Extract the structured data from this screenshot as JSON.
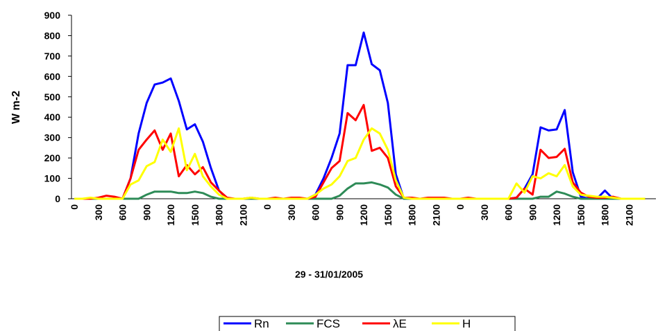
{
  "chart_data": {
    "type": "line",
    "xlabel": "29 - 31/01/2005",
    "ylabel": "W m-2",
    "categories": [
      "0",
      null,
      null,
      "300",
      null,
      null,
      "600",
      null,
      null,
      "900",
      null,
      null,
      "1200",
      null,
      null,
      "1500",
      null,
      null,
      "1800",
      null,
      null,
      "2100",
      null,
      null,
      "0",
      null,
      null,
      "300",
      null,
      null,
      "600",
      null,
      null,
      "900",
      null,
      null,
      "1200",
      null,
      null,
      "1500",
      null,
      null,
      "1800",
      null,
      null,
      "2100",
      null,
      null,
      "0",
      null,
      null,
      "300",
      null,
      null,
      "600",
      null,
      null,
      "900",
      null,
      null,
      "1200",
      null,
      null,
      "1500",
      null,
      null,
      "1800",
      null,
      null,
      "2100",
      null,
      null
    ],
    "series": [
      {
        "name": "Rn",
        "color": "#0000ff",
        "values": [
          0,
          0,
          0,
          0,
          0,
          0,
          0,
          100,
          320,
          470,
          560,
          570,
          590,
          480,
          340,
          365,
          280,
          150,
          40,
          0,
          0,
          0,
          0,
          0,
          0,
          0,
          0,
          0,
          0,
          0,
          20,
          100,
          200,
          320,
          655,
          655,
          815,
          660,
          630,
          470,
          120,
          0,
          0,
          0,
          0,
          0,
          0,
          0,
          0,
          0,
          0,
          0,
          0,
          0,
          0,
          5,
          50,
          120,
          350,
          335,
          340,
          435,
          130,
          10,
          0,
          0,
          40,
          0,
          0,
          0,
          0,
          0
        ]
      },
      {
        "name": "FCS",
        "color": "#2e8b57",
        "values": [
          0,
          0,
          0,
          0,
          0,
          0,
          0,
          0,
          0,
          20,
          35,
          35,
          35,
          28,
          28,
          35,
          28,
          10,
          0,
          0,
          0,
          0,
          0,
          0,
          0,
          0,
          0,
          0,
          0,
          0,
          0,
          0,
          0,
          15,
          50,
          75,
          75,
          80,
          70,
          55,
          20,
          0,
          0,
          0,
          0,
          0,
          0,
          0,
          0,
          0,
          0,
          0,
          0,
          0,
          0,
          0,
          0,
          0,
          10,
          10,
          35,
          25,
          10,
          0,
          0,
          0,
          0,
          0,
          0,
          0,
          0,
          0
        ]
      },
      {
        "name": "λE",
        "color": "#ff0000",
        "values": [
          0,
          0,
          0,
          5,
          15,
          10,
          0,
          100,
          240,
          290,
          335,
          240,
          320,
          110,
          165,
          120,
          155,
          80,
          40,
          5,
          0,
          0,
          5,
          0,
          0,
          5,
          0,
          5,
          5,
          0,
          10,
          80,
          150,
          185,
          420,
          385,
          460,
          235,
          250,
          200,
          60,
          5,
          5,
          0,
          5,
          5,
          5,
          0,
          0,
          5,
          0,
          0,
          0,
          0,
          0,
          5,
          50,
          20,
          240,
          200,
          205,
          245,
          80,
          30,
          10,
          5,
          5,
          10,
          0,
          0,
          0,
          0
        ]
      },
      {
        "name": "H",
        "color": "#ffff00",
        "values": [
          0,
          0,
          5,
          0,
          0,
          0,
          0,
          70,
          90,
          160,
          180,
          290,
          230,
          345,
          140,
          220,
          110,
          60,
          20,
          0,
          0,
          0,
          5,
          0,
          0,
          0,
          0,
          0,
          0,
          0,
          20,
          50,
          70,
          110,
          185,
          200,
          290,
          345,
          320,
          240,
          90,
          5,
          0,
          0,
          0,
          0,
          0,
          0,
          0,
          0,
          0,
          0,
          0,
          0,
          0,
          75,
          30,
          110,
          100,
          125,
          110,
          165,
          60,
          20,
          15,
          10,
          10,
          5,
          0,
          0,
          0,
          0
        ]
      }
    ],
    "ylim": [
      0,
      900
    ],
    "yticks": [
      0,
      100,
      200,
      300,
      400,
      500,
      600,
      700,
      800,
      900
    ],
    "grid": false,
    "legend": "bottom"
  }
}
